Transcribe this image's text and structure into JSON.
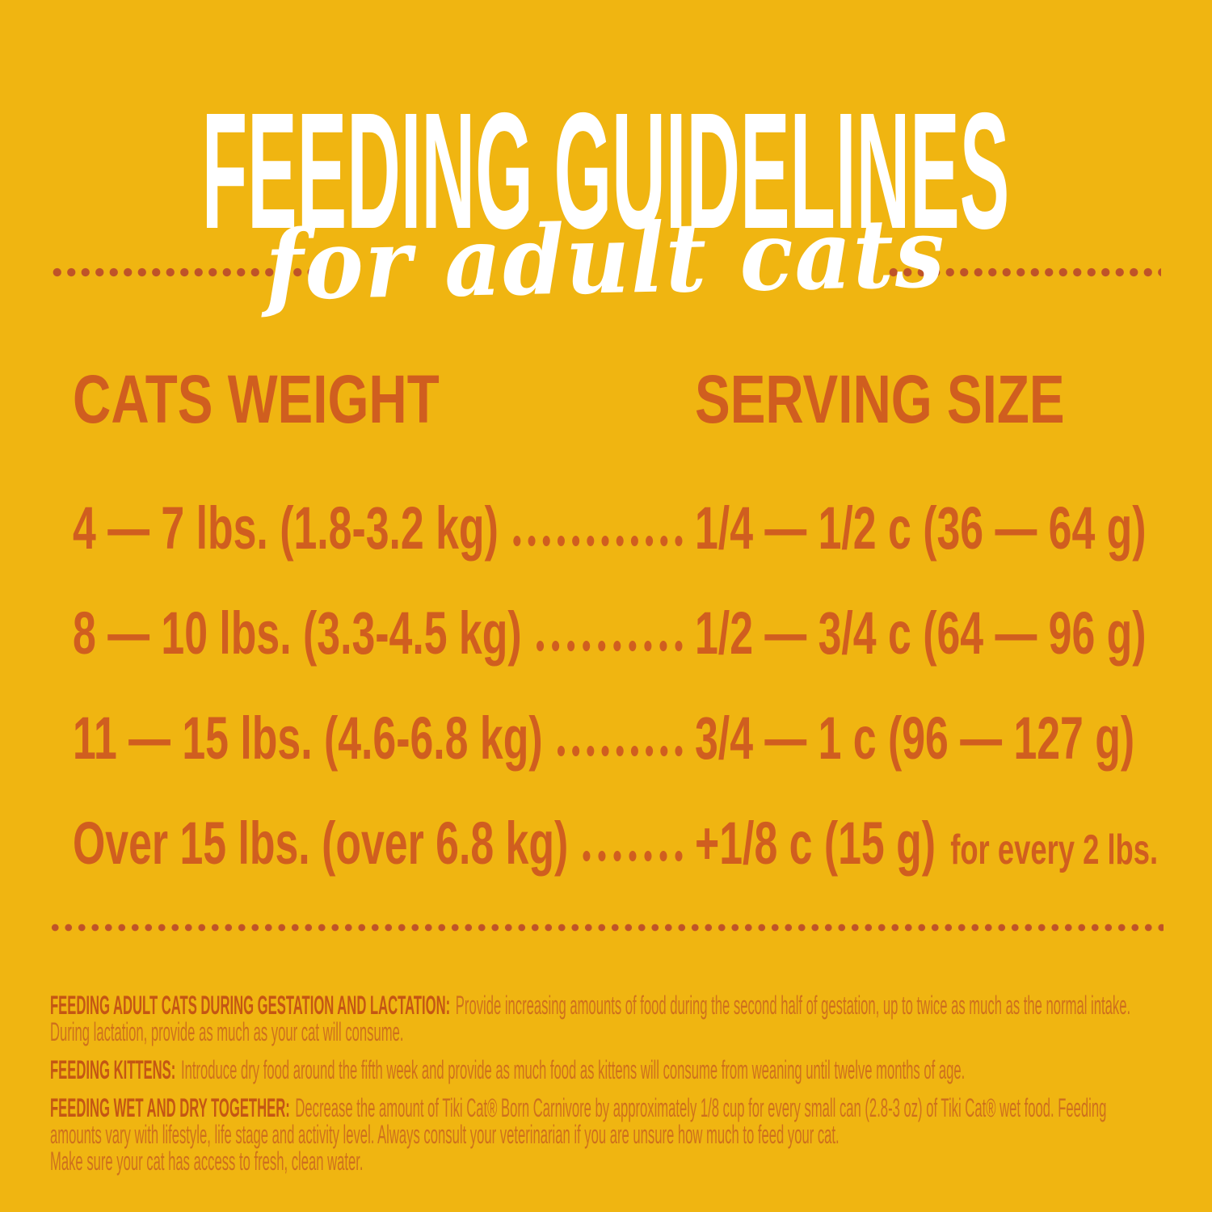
{
  "header": {
    "title": "FEEDING GUIDELINES",
    "subtitle": "for adult cats"
  },
  "table": {
    "weight_header": "CATS WEIGHT",
    "serving_header": "SERVING SIZE",
    "rows": [
      {
        "weight": "4 — 7 lbs. (1.8-3.2 kg)",
        "serving": "1/4 — 1/2 c (36 — 64 g)",
        "suffix": ""
      },
      {
        "weight": "8 — 10 lbs. (3.3-4.5 kg)",
        "serving": "1/2 — 3/4 c (64 — 96 g)",
        "suffix": ""
      },
      {
        "weight": "11 — 15 lbs. (4.6-6.8 kg)",
        "serving": "3/4 — 1 c (96 — 127 g)",
        "suffix": ""
      },
      {
        "weight": "Over 15 lbs. (over 6.8 kg)",
        "serving": "+1/8 c (15 g)",
        "suffix": "for every 2 lbs."
      }
    ]
  },
  "notes": [
    {
      "label": "FEEDING ADULT CATS DURING GESTATION AND LACTATION:",
      "text": "Provide increasing amounts of food during the second half of gestation, up to twice as much as the normal intake.  During lactation, provide as much as your cat will consume.",
      "extra": ""
    },
    {
      "label": "FEEDING KITTENS:",
      "text": "Introduce dry food around the fifth week and provide as much food as kittens will consume from weaning until twelve months of age.",
      "extra": ""
    },
    {
      "label": "FEEDING WET AND DRY TOGETHER:",
      "text": "Decrease the amount of Tiki Cat® Born Carnivore by approximately 1/8 cup for every small can (2.8-3 oz) of Tiki Cat® wet food. Feeding amounts vary with lifestyle, life stage and activity level.  Always consult your veterinarian if you are unsure how much to feed your cat.",
      "extra": "Make sure your cat has access to fresh, clean water."
    }
  ],
  "colors": {
    "background": "#F0B511",
    "heading_white": "#FFFFFF",
    "table_orange": "#D05E1F",
    "dot_rust": "#BF5328",
    "note_label_orange": "#C45614",
    "note_body_orange": "#CE701D"
  }
}
